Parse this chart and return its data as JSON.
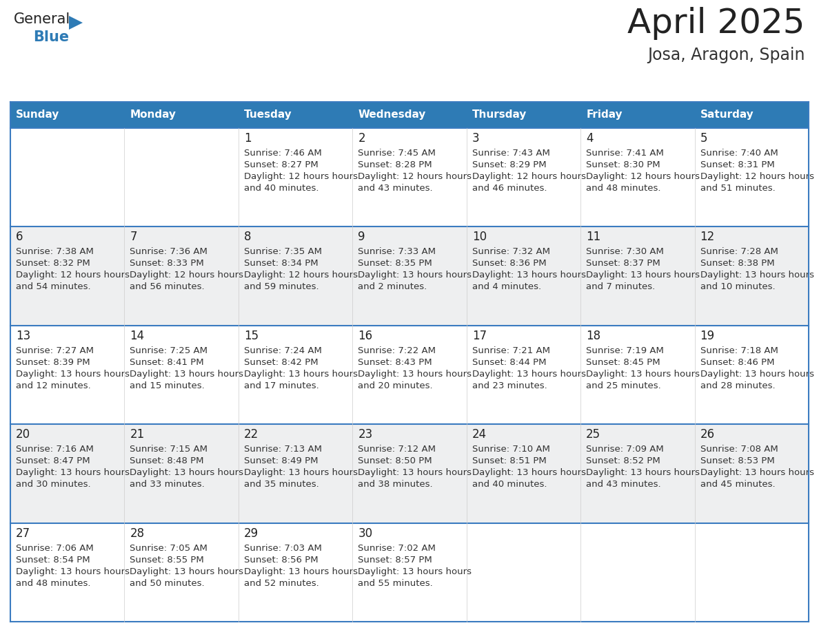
{
  "title": "April 2025",
  "subtitle": "Josa, Aragon, Spain",
  "header_bg": "#2E7BB5",
  "header_text_color": "#FFFFFF",
  "cell_bg_even": "#FFFFFF",
  "cell_bg_odd": "#EEEFF0",
  "day_names": [
    "Sunday",
    "Monday",
    "Tuesday",
    "Wednesday",
    "Thursday",
    "Friday",
    "Saturday"
  ],
  "title_color": "#222222",
  "subtitle_color": "#333333",
  "cell_text_color": "#333333",
  "day_num_color": "#222222",
  "grid_color": "#3A7BC0",
  "calendar": [
    [
      {
        "day": "",
        "sunrise": "",
        "sunset": "",
        "daylight": ""
      },
      {
        "day": "",
        "sunrise": "",
        "sunset": "",
        "daylight": ""
      },
      {
        "day": "1",
        "sunrise": "7:46 AM",
        "sunset": "8:27 PM",
        "daylight": "12 hours and 40 minutes."
      },
      {
        "day": "2",
        "sunrise": "7:45 AM",
        "sunset": "8:28 PM",
        "daylight": "12 hours and 43 minutes."
      },
      {
        "day": "3",
        "sunrise": "7:43 AM",
        "sunset": "8:29 PM",
        "daylight": "12 hours and 46 minutes."
      },
      {
        "day": "4",
        "sunrise": "7:41 AM",
        "sunset": "8:30 PM",
        "daylight": "12 hours and 48 minutes."
      },
      {
        "day": "5",
        "sunrise": "7:40 AM",
        "sunset": "8:31 PM",
        "daylight": "12 hours and 51 minutes."
      }
    ],
    [
      {
        "day": "6",
        "sunrise": "7:38 AM",
        "sunset": "8:32 PM",
        "daylight": "12 hours and 54 minutes."
      },
      {
        "day": "7",
        "sunrise": "7:36 AM",
        "sunset": "8:33 PM",
        "daylight": "12 hours and 56 minutes."
      },
      {
        "day": "8",
        "sunrise": "7:35 AM",
        "sunset": "8:34 PM",
        "daylight": "12 hours and 59 minutes."
      },
      {
        "day": "9",
        "sunrise": "7:33 AM",
        "sunset": "8:35 PM",
        "daylight": "13 hours and 2 minutes."
      },
      {
        "day": "10",
        "sunrise": "7:32 AM",
        "sunset": "8:36 PM",
        "daylight": "13 hours and 4 minutes."
      },
      {
        "day": "11",
        "sunrise": "7:30 AM",
        "sunset": "8:37 PM",
        "daylight": "13 hours and 7 minutes."
      },
      {
        "day": "12",
        "sunrise": "7:28 AM",
        "sunset": "8:38 PM",
        "daylight": "13 hours and 10 minutes."
      }
    ],
    [
      {
        "day": "13",
        "sunrise": "7:27 AM",
        "sunset": "8:39 PM",
        "daylight": "13 hours and 12 minutes."
      },
      {
        "day": "14",
        "sunrise": "7:25 AM",
        "sunset": "8:41 PM",
        "daylight": "13 hours and 15 minutes."
      },
      {
        "day": "15",
        "sunrise": "7:24 AM",
        "sunset": "8:42 PM",
        "daylight": "13 hours and 17 minutes."
      },
      {
        "day": "16",
        "sunrise": "7:22 AM",
        "sunset": "8:43 PM",
        "daylight": "13 hours and 20 minutes."
      },
      {
        "day": "17",
        "sunrise": "7:21 AM",
        "sunset": "8:44 PM",
        "daylight": "13 hours and 23 minutes."
      },
      {
        "day": "18",
        "sunrise": "7:19 AM",
        "sunset": "8:45 PM",
        "daylight": "13 hours and 25 minutes."
      },
      {
        "day": "19",
        "sunrise": "7:18 AM",
        "sunset": "8:46 PM",
        "daylight": "13 hours and 28 minutes."
      }
    ],
    [
      {
        "day": "20",
        "sunrise": "7:16 AM",
        "sunset": "8:47 PM",
        "daylight": "13 hours and 30 minutes."
      },
      {
        "day": "21",
        "sunrise": "7:15 AM",
        "sunset": "8:48 PM",
        "daylight": "13 hours and 33 minutes."
      },
      {
        "day": "22",
        "sunrise": "7:13 AM",
        "sunset": "8:49 PM",
        "daylight": "13 hours and 35 minutes."
      },
      {
        "day": "23",
        "sunrise": "7:12 AM",
        "sunset": "8:50 PM",
        "daylight": "13 hours and 38 minutes."
      },
      {
        "day": "24",
        "sunrise": "7:10 AM",
        "sunset": "8:51 PM",
        "daylight": "13 hours and 40 minutes."
      },
      {
        "day": "25",
        "sunrise": "7:09 AM",
        "sunset": "8:52 PM",
        "daylight": "13 hours and 43 minutes."
      },
      {
        "day": "26",
        "sunrise": "7:08 AM",
        "sunset": "8:53 PM",
        "daylight": "13 hours and 45 minutes."
      }
    ],
    [
      {
        "day": "27",
        "sunrise": "7:06 AM",
        "sunset": "8:54 PM",
        "daylight": "13 hours and 48 minutes."
      },
      {
        "day": "28",
        "sunrise": "7:05 AM",
        "sunset": "8:55 PM",
        "daylight": "13 hours and 50 minutes."
      },
      {
        "day": "29",
        "sunrise": "7:03 AM",
        "sunset": "8:56 PM",
        "daylight": "13 hours and 52 minutes."
      },
      {
        "day": "30",
        "sunrise": "7:02 AM",
        "sunset": "8:57 PM",
        "daylight": "13 hours and 55 minutes."
      },
      {
        "day": "",
        "sunrise": "",
        "sunset": "",
        "daylight": ""
      },
      {
        "day": "",
        "sunrise": "",
        "sunset": "",
        "daylight": ""
      },
      {
        "day": "",
        "sunrise": "",
        "sunset": "",
        "daylight": ""
      }
    ]
  ]
}
